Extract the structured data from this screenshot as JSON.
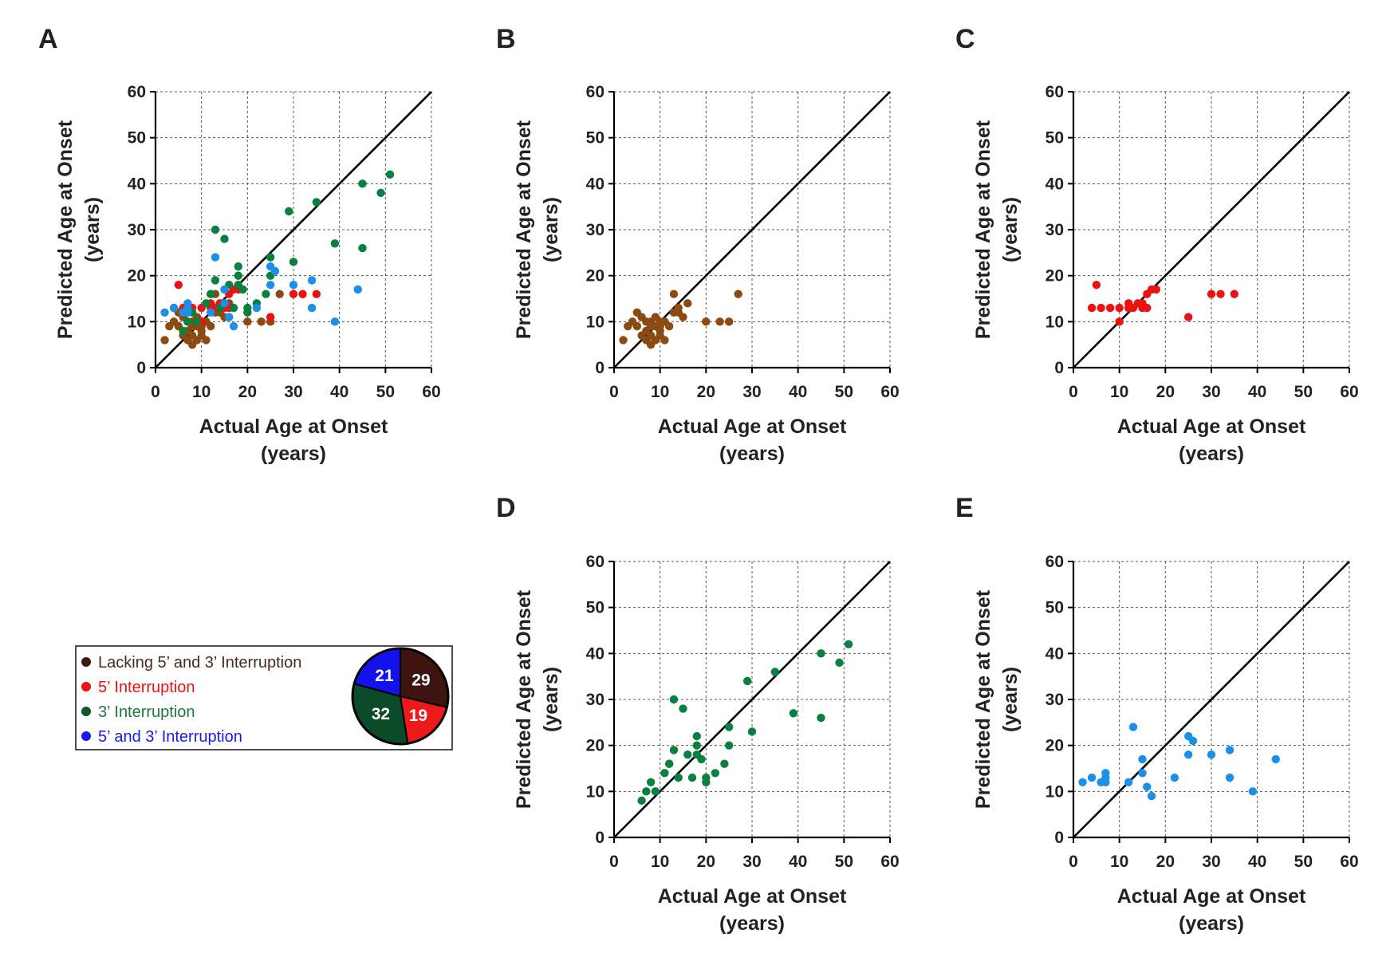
{
  "figure": {
    "legend": {
      "items": [
        {
          "label": "Lacking 5’ and 3’ Interruption",
          "dot_color": "#3a1a0e",
          "text_color": "#4a2a1a"
        },
        {
          "label": "5’ Interruption",
          "dot_color": "#ee1111",
          "text_color": "#ee1111"
        },
        {
          "label": "3’ Interruption",
          "dot_color": "#0a5a2a",
          "text_color": "#1a7a3a"
        },
        {
          "label": "5’ and 3’ Interruption",
          "dot_color": "#1a1aee",
          "text_color": "#1a1aee"
        }
      ]
    },
    "pie": {
      "slices": [
        {
          "label": "29",
          "value": 29,
          "color": "#3d1410"
        },
        {
          "label": "19",
          "value": 19,
          "color": "#ee1a1a"
        },
        {
          "label": "32",
          "value": 32,
          "color": "#0b4a26"
        },
        {
          "label": "21",
          "value": 21,
          "color": "#1212ee"
        }
      ]
    }
  },
  "chart_data": [
    {
      "panel": "A",
      "type": "scatter",
      "xlabel": "Actual Age at Onset\n(years)",
      "ylabel": "Predicted Age at Onset\n(years)",
      "xlim": [
        0,
        60
      ],
      "ylim": [
        0,
        60
      ],
      "xticks": [
        "0",
        "10",
        "20",
        "30",
        "40",
        "50",
        "60"
      ],
      "yticks": [
        "0",
        "10",
        "20",
        "30",
        "40",
        "50",
        "60"
      ],
      "identity_line": true,
      "grid": true,
      "series": [
        {
          "name": "Lacking 5' and 3' Interruption",
          "color": "#8b4a12",
          "x": [
            2,
            3,
            4,
            5,
            5,
            6,
            6,
            7,
            7,
            7,
            8,
            8,
            8,
            8,
            9,
            9,
            9,
            10,
            10,
            10,
            10,
            11,
            11,
            12,
            13,
            13,
            14,
            14,
            15,
            16,
            20,
            23,
            25,
            27
          ],
          "y": [
            6,
            9,
            10,
            12,
            9,
            11,
            7,
            8,
            10,
            6,
            7,
            10,
            5,
            9,
            9,
            11,
            6,
            10,
            8,
            7,
            9,
            6,
            10,
            9,
            16,
            12,
            12,
            13,
            11,
            14,
            10,
            10,
            10,
            16
          ]
        },
        {
          "name": "5' Interruption",
          "color": "#ee1111",
          "x": [
            4,
            5,
            6,
            8,
            10,
            10,
            12,
            12,
            13,
            14,
            15,
            15,
            16,
            16,
            17,
            18,
            25,
            30,
            32,
            35
          ],
          "y": [
            13,
            18,
            13,
            13,
            10,
            13,
            14,
            13,
            13,
            14,
            13,
            14,
            16,
            13,
            17,
            17,
            11,
            16,
            16,
            16
          ]
        },
        {
          "name": "3' Interruption",
          "color": "#0a8040",
          "x": [
            6,
            7,
            8,
            9,
            11,
            12,
            12,
            13,
            13,
            14,
            15,
            16,
            17,
            18,
            18,
            18,
            19,
            20,
            20,
            22,
            24,
            25,
            25,
            29,
            30,
            35,
            39,
            45,
            45,
            49,
            51
          ],
          "y": [
            8,
            10,
            12,
            10,
            14,
            16,
            16,
            19,
            30,
            13,
            28,
            18,
            13,
            20,
            22,
            18,
            17,
            12,
            13,
            14,
            16,
            24,
            20,
            34,
            23,
            36,
            27,
            40,
            26,
            38,
            42
          ]
        },
        {
          "name": "5' and 3' Interruption",
          "color": "#1a90e8",
          "x": [
            2,
            4,
            6,
            7,
            7,
            7,
            12,
            13,
            15,
            15,
            16,
            17,
            22,
            25,
            25,
            26,
            30,
            34,
            34,
            39,
            44
          ],
          "y": [
            12,
            13,
            12,
            13,
            12,
            14,
            12,
            24,
            17,
            14,
            11,
            9,
            13,
            22,
            18,
            21,
            18,
            19,
            13,
            10,
            17
          ]
        }
      ]
    },
    {
      "panel": "B",
      "type": "scatter",
      "xlabel": "Actual Age at Onset\n(years)",
      "ylabel": "Predicted Age at Onset\n(years)",
      "xlim": [
        0,
        60
      ],
      "ylim": [
        0,
        60
      ],
      "xticks": [
        "0",
        "10",
        "20",
        "30",
        "40",
        "50",
        "60"
      ],
      "yticks": [
        "0",
        "10",
        "20",
        "30",
        "40",
        "50",
        "60"
      ],
      "identity_line": true,
      "grid": true,
      "series": [
        {
          "name": "Lacking 5' and 3' Interruption",
          "color": "#8b4a12",
          "x": [
            2,
            3,
            4,
            5,
            5,
            6,
            6,
            7,
            7,
            7,
            8,
            8,
            8,
            8,
            9,
            9,
            9,
            10,
            10,
            10,
            10,
            11,
            11,
            12,
            13,
            13,
            14,
            14,
            15,
            16,
            20,
            23,
            25,
            27
          ],
          "y": [
            6,
            9,
            10,
            12,
            9,
            11,
            7,
            8,
            10,
            6,
            7,
            10,
            5,
            9,
            9,
            11,
            6,
            10,
            8,
            7,
            9,
            6,
            10,
            9,
            16,
            12,
            12,
            13,
            11,
            14,
            10,
            10,
            10,
            16
          ]
        }
      ]
    },
    {
      "panel": "C",
      "type": "scatter",
      "xlabel": "Actual Age at Onset\n(years)",
      "ylabel": "Predicted Age at Onset\n(years)",
      "xlim": [
        0,
        60
      ],
      "ylim": [
        0,
        60
      ],
      "xticks": [
        "0",
        "10",
        "20",
        "30",
        "40",
        "50",
        "60"
      ],
      "yticks": [
        "0",
        "10",
        "20",
        "30",
        "40",
        "50",
        "60"
      ],
      "identity_line": true,
      "grid": true,
      "series": [
        {
          "name": "5' Interruption",
          "color": "#ee1111",
          "x": [
            4,
            5,
            6,
            8,
            10,
            10,
            12,
            12,
            13,
            14,
            15,
            15,
            16,
            16,
            17,
            18,
            25,
            30,
            32,
            35
          ],
          "y": [
            13,
            18,
            13,
            13,
            10,
            13,
            14,
            13,
            13,
            14,
            13,
            14,
            16,
            13,
            17,
            17,
            11,
            16,
            16,
            16
          ]
        }
      ]
    },
    {
      "panel": "D",
      "type": "scatter",
      "xlabel": "Actual Age at Onset\n(years)",
      "ylabel": "Predicted Age at Onset\n(years)",
      "xlim": [
        0,
        60
      ],
      "ylim": [
        0,
        60
      ],
      "xticks": [
        "0",
        "10",
        "20",
        "30",
        "40",
        "50",
        "60"
      ],
      "yticks": [
        "0",
        "10",
        "20",
        "30",
        "40",
        "50",
        "60"
      ],
      "identity_line": true,
      "grid": true,
      "series": [
        {
          "name": "3' Interruption",
          "color": "#0a8040",
          "x": [
            6,
            7,
            8,
            9,
            11,
            12,
            12,
            13,
            13,
            14,
            15,
            16,
            17,
            18,
            18,
            18,
            19,
            20,
            20,
            22,
            24,
            25,
            25,
            29,
            30,
            35,
            39,
            45,
            45,
            49,
            51
          ],
          "y": [
            8,
            10,
            12,
            10,
            14,
            16,
            16,
            19,
            30,
            13,
            28,
            18,
            13,
            20,
            22,
            18,
            17,
            12,
            13,
            14,
            16,
            24,
            20,
            34,
            23,
            36,
            27,
            40,
            26,
            38,
            42
          ]
        }
      ]
    },
    {
      "panel": "E",
      "type": "scatter",
      "xlabel": "Actual Age at Onset\n(years)",
      "ylabel": "Predicted Age at Onset\n(years)",
      "xlim": [
        0,
        60
      ],
      "ylim": [
        0,
        60
      ],
      "xticks": [
        "0",
        "10",
        "20",
        "30",
        "40",
        "50",
        "60"
      ],
      "yticks": [
        "0",
        "10",
        "20",
        "30",
        "40",
        "50",
        "60"
      ],
      "identity_line": true,
      "grid": true,
      "series": [
        {
          "name": "5' and 3' Interruption",
          "color": "#1a90e8",
          "x": [
            2,
            4,
            6,
            7,
            7,
            7,
            12,
            13,
            15,
            15,
            16,
            17,
            22,
            25,
            25,
            26,
            30,
            34,
            34,
            39,
            44
          ],
          "y": [
            12,
            13,
            12,
            13,
            12,
            14,
            12,
            24,
            17,
            14,
            11,
            9,
            13,
            22,
            18,
            21,
            18,
            19,
            13,
            10,
            17
          ]
        }
      ]
    }
  ]
}
